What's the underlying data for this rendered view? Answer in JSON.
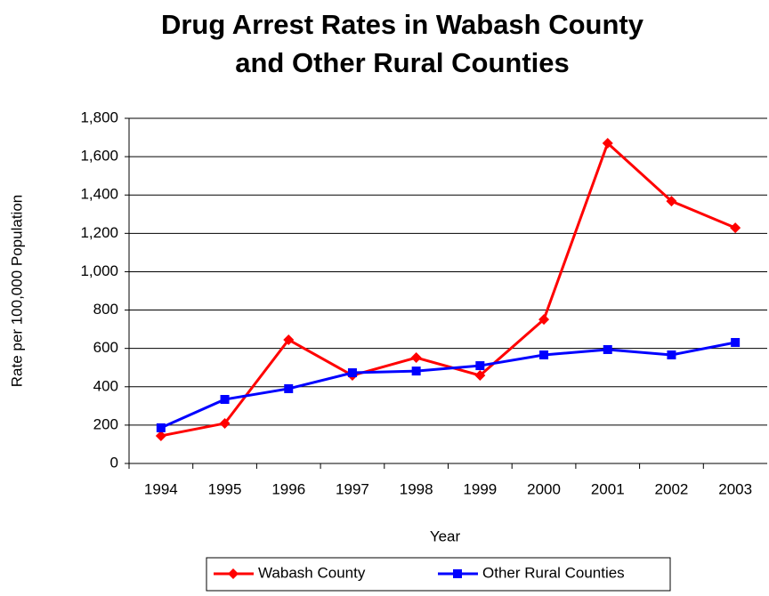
{
  "chart_data": {
    "type": "line",
    "title": [
      "Drug Arrest Rates in Wabash County",
      "and Other Rural Counties"
    ],
    "x_label": "Year",
    "y_label": "Rate per 100,000 Population",
    "categories": [
      "1994",
      "1995",
      "1996",
      "1997",
      "1998",
      "1999",
      "2000",
      "2001",
      "2002",
      "2003"
    ],
    "series": [
      {
        "name": "Wabash County",
        "color": "#ff0000",
        "marker": "diamond",
        "values": [
          144,
          209,
          645,
          459,
          552,
          459,
          751,
          1670,
          1368,
          1229
        ]
      },
      {
        "name": "Other Rural Counties",
        "color": "#0000ff",
        "marker": "square",
        "values": [
          186,
          334,
          390,
          473,
          482,
          510,
          566,
          594,
          566,
          631
        ]
      }
    ],
    "ylim": [
      0,
      1800
    ],
    "yticks": [
      0,
      200,
      400,
      600,
      800,
      {
        "value": 1000,
        "label": "1,000"
      },
      {
        "value": 1200,
        "label": "1,200"
      },
      {
        "value": 1400,
        "label": "1,400"
      },
      {
        "value": 1600,
        "label": "1,600"
      },
      {
        "value": 1800,
        "label": "1,800"
      }
    ],
    "grid": true,
    "legend": "bottom"
  }
}
